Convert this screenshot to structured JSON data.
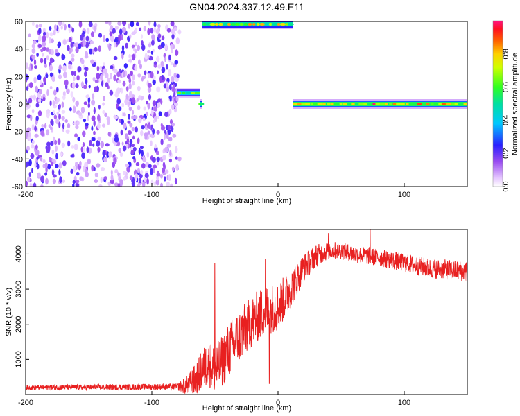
{
  "title": "GN04.2024.337.12.49.E11",
  "chart_data": [
    {
      "type": "heatmap",
      "title": "GN04.2024.337.12.49.E11",
      "xlabel": "Height of straight line (km)",
      "ylabel": "Frequency (Hz)",
      "xlim": [
        -200,
        150
      ],
      "ylim": [
        -60,
        60
      ],
      "x_ticks": [
        "-200",
        "-100",
        "0",
        "100"
      ],
      "y_ticks": [
        "-60",
        "-40",
        "-20",
        "0",
        "20",
        "40",
        "60"
      ],
      "colorbar": {
        "label": "Normalized spectral amplitude",
        "range": [
          0.0,
          1.0
        ],
        "ticks": [
          "0.0",
          "0.2",
          "0.4",
          "0.6",
          "0.8"
        ]
      },
      "features": [
        {
          "region": "broadband noise",
          "x_range": [
            -200,
            -78
          ],
          "y_range": [
            -60,
            60
          ],
          "amplitude": 0.15
        },
        {
          "region": "tone",
          "x_range": [
            -80,
            -62
          ],
          "frequency": 8,
          "amplitude": 0.7
        },
        {
          "region": "tone",
          "x_range": [
            -62,
            -60
          ],
          "frequency": 0,
          "amplitude": 0.9
        },
        {
          "region": "tone",
          "x_range": [
            -60,
            12
          ],
          "frequency": 58,
          "amplitude": 0.85
        },
        {
          "region": "tone",
          "x_range": [
            12,
            150
          ],
          "frequency": 0,
          "amplitude": 1.0
        }
      ],
      "grid": false
    },
    {
      "type": "line",
      "xlabel": "Height of straight line (km)",
      "ylabel": "SNR (10 * v/v)",
      "xlim": [
        -200,
        150
      ],
      "ylim": [
        0,
        4700
      ],
      "x_ticks": [
        "-200",
        "-100",
        "0",
        "100"
      ],
      "y_ticks": [
        "1000",
        "2000",
        "3000",
        "4000"
      ],
      "color": "#e82020",
      "grid": false,
      "trend": {
        "x": [
          -200,
          -80,
          -72,
          -66,
          -60,
          -55,
          -50,
          -45,
          -40,
          -30,
          -20,
          -10,
          0,
          10,
          20,
          30,
          40,
          50,
          60,
          70,
          80,
          100,
          120,
          150
        ],
        "y": [
          200,
          220,
          260,
          400,
          700,
          900,
          700,
          900,
          1200,
          1700,
          2100,
          2400,
          2500,
          3000,
          3600,
          3950,
          4100,
          4100,
          4000,
          3950,
          3900,
          3750,
          3600,
          3500
        ]
      },
      "noise_amplitude": {
        "x": [
          -200,
          -80,
          -60,
          -40,
          0,
          20,
          40,
          80,
          150
        ],
        "y": [
          70,
          90,
          600,
          800,
          700,
          400,
          250,
          250,
          300
        ]
      },
      "spikes": [
        {
          "x": -50,
          "y": 3750
        },
        {
          "x": -10,
          "y": 3850
        },
        {
          "x": -7,
          "y": 300
        },
        {
          "x": 40,
          "y": 4600
        },
        {
          "x": 73,
          "y": 4700
        }
      ]
    }
  ]
}
